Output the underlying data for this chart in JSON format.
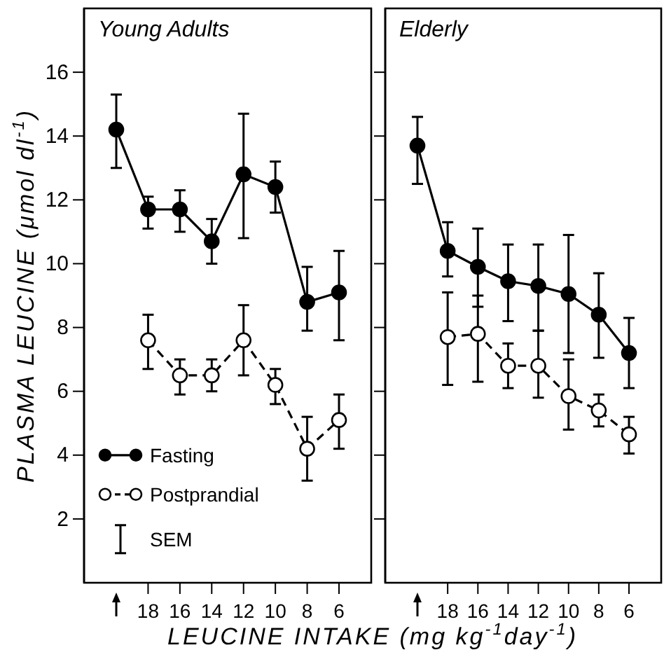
{
  "chart_data": [
    {
      "type": "line",
      "title": "Young Adults",
      "xlabel": "LEUCINE INTAKE (mg kg$^{-1}$day$^{-1}$)",
      "ylabel": "PLASMA LEUCINE (μmol dl$^{-1}$)",
      "categories": [
        null,
        "18",
        "16",
        "14",
        "12",
        "10",
        "8",
        "6"
      ],
      "series": [
        {
          "name": "Fasting",
          "color": "#000000",
          "line_style": "solid",
          "values": [
            14.2,
            11.7,
            11.7,
            10.7,
            12.8,
            12.4,
            8.8,
            9.1
          ],
          "errors": [
            [
              13.0,
              15.3
            ],
            [
              11.1,
              12.1
            ],
            [
              11.0,
              12.3
            ],
            [
              10.0,
              11.4
            ],
            [
              10.8,
              14.7
            ],
            [
              11.6,
              13.2
            ],
            [
              7.9,
              9.9
            ],
            [
              7.6,
              10.4
            ]
          ]
        },
        {
          "name": "Postprandial",
          "color": "#000000",
          "line_style": "dashed",
          "values": [
            null,
            7.6,
            6.5,
            6.5,
            7.6,
            6.2,
            4.2,
            5.1
          ],
          "errors": [
            null,
            [
              6.7,
              8.4
            ],
            [
              5.9,
              7.0
            ],
            [
              6.0,
              7.0
            ],
            [
              6.5,
              8.7
            ],
            [
              5.6,
              6.7
            ],
            [
              3.2,
              5.2
            ],
            [
              4.2,
              5.9
            ]
          ]
        }
      ],
      "marker": "circle",
      "ylim": [
        0,
        18
      ],
      "yticks": [
        2,
        4,
        6,
        8,
        10,
        12,
        14,
        16
      ],
      "grid": false,
      "legend": "bottom left",
      "annotations": [
        "SEM"
      ]
    },
    {
      "type": "line",
      "title": "Elderly",
      "categories": [
        null,
        "18",
        "16",
        "14",
        "12",
        "10",
        "8",
        "6"
      ],
      "series": [
        {
          "color": "#000000",
          "line_style": "solid",
          "values": [
            13.7,
            10.4,
            9.9,
            9.45,
            9.3,
            9.05,
            8.4,
            7.2
          ],
          "errors": [
            [
              12.5,
              14.6
            ],
            [
              9.6,
              11.3
            ],
            [
              8.65,
              11.1
            ],
            [
              8.2,
              10.6
            ],
            [
              7.9,
              10.6
            ],
            [
              7.2,
              10.9
            ],
            [
              7.05,
              9.7
            ],
            [
              6.1,
              8.3
            ]
          ]
        },
        {
          "color": "#000000",
          "line_style": "dashed",
          "values": [
            null,
            7.7,
            7.8,
            6.8,
            6.8,
            5.85,
            5.4,
            4.65
          ],
          "errors": [
            null,
            [
              6.2,
              9.1
            ],
            [
              6.3,
              9.0
            ],
            [
              6.1,
              7.5
            ],
            [
              5.8,
              7.9
            ],
            [
              4.8,
              7.0
            ],
            [
              4.9,
              5.9
            ],
            [
              4.05,
              5.2
            ]
          ]
        }
      ],
      "marker": "circle",
      "ylim": [
        0,
        18
      ],
      "yticks": [
        2,
        4,
        6,
        8,
        10,
        12,
        14,
        16
      ],
      "grid": false,
      "legend": false,
      "tick_labels": "x"
    }
  ]
}
